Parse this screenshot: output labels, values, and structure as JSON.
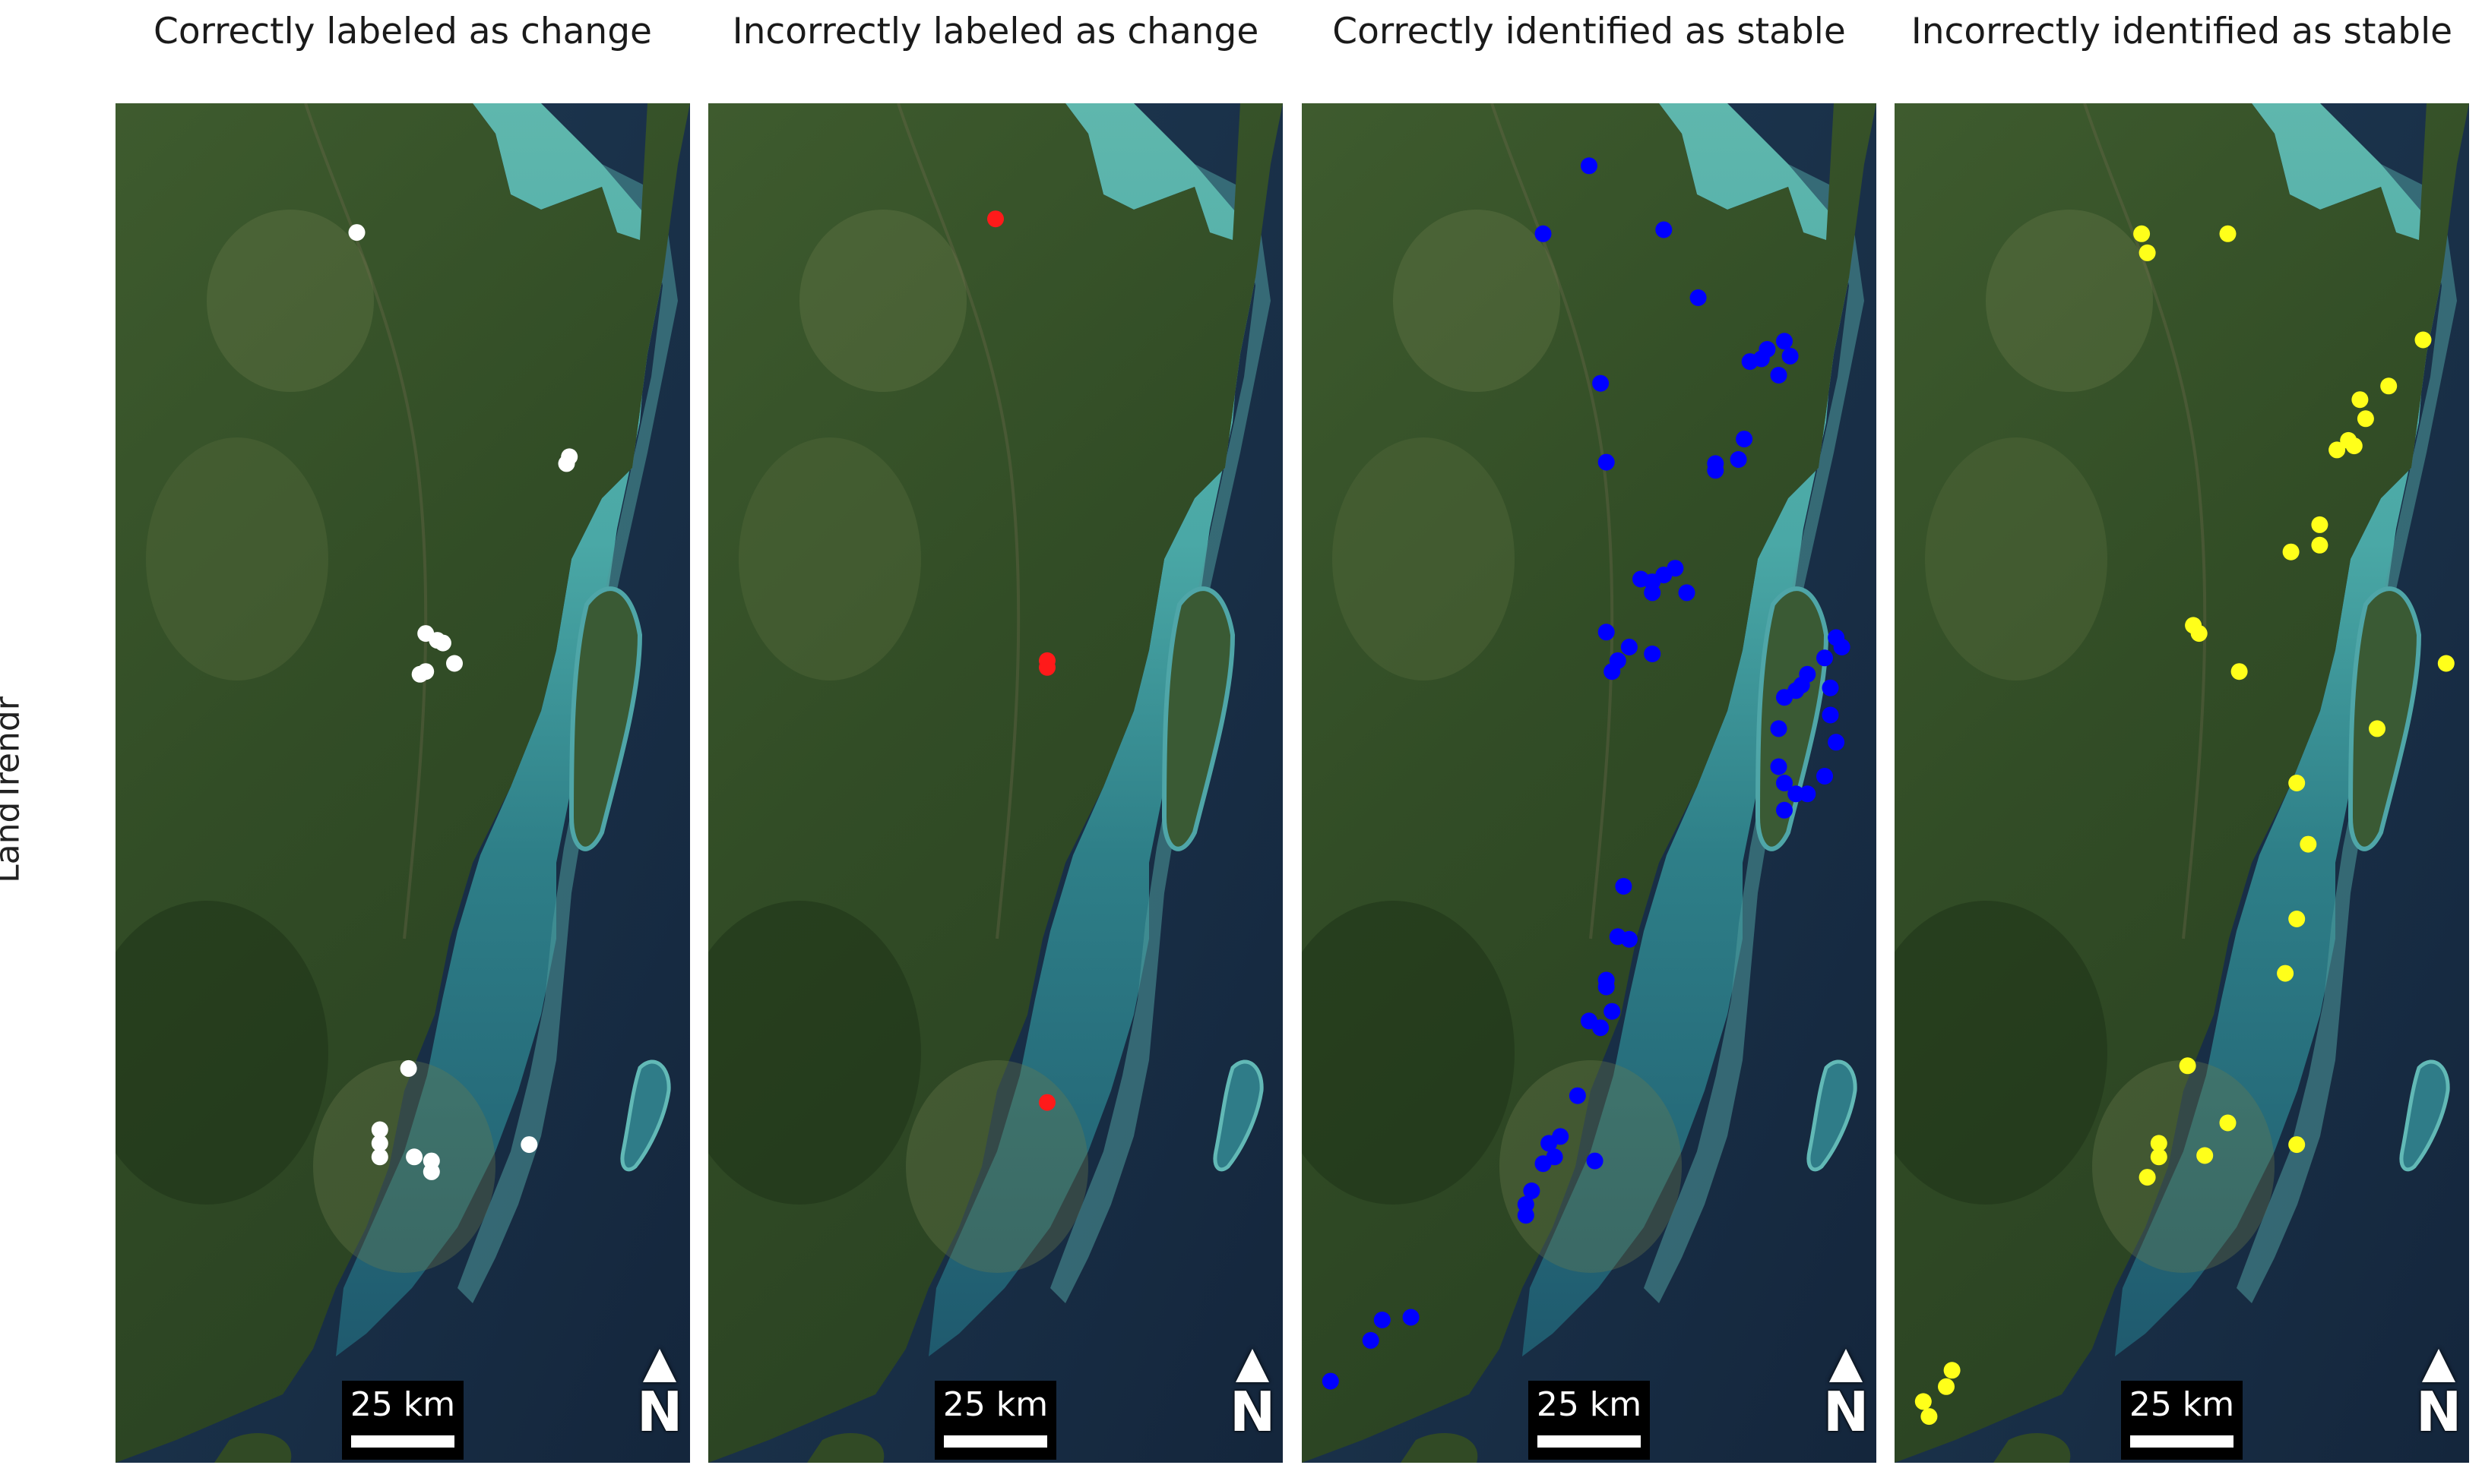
{
  "row_label": "LandTrendr",
  "scale_text": "25 km",
  "north_label": "N",
  "panels": [
    {
      "title": "Correctly labeled as change",
      "color": "#ffffff",
      "points": [
        [
          0.42,
          0.095
        ],
        [
          0.79,
          0.26
        ],
        [
          0.785,
          0.265
        ],
        [
          0.54,
          0.39
        ],
        [
          0.56,
          0.395
        ],
        [
          0.57,
          0.397
        ],
        [
          0.53,
          0.42
        ],
        [
          0.54,
          0.418
        ],
        [
          0.59,
          0.412
        ],
        [
          0.51,
          0.71
        ],
        [
          0.46,
          0.755
        ],
        [
          0.46,
          0.765
        ],
        [
          0.46,
          0.775
        ],
        [
          0.52,
          0.775
        ],
        [
          0.55,
          0.778
        ],
        [
          0.55,
          0.786
        ],
        [
          0.72,
          0.766
        ]
      ]
    },
    {
      "title": "Incorrectly labeled as change",
      "color": "#ff1a1a",
      "points": [
        [
          0.5,
          0.085
        ],
        [
          0.59,
          0.41
        ],
        [
          0.59,
          0.415
        ],
        [
          0.59,
          0.735
        ]
      ]
    },
    {
      "title": "Correctly identified as stable",
      "color": "#0000ff",
      "points": [
        [
          0.5,
          0.046
        ],
        [
          0.42,
          0.096
        ],
        [
          0.63,
          0.093
        ],
        [
          0.69,
          0.143
        ],
        [
          0.52,
          0.206
        ],
        [
          0.8,
          0.188
        ],
        [
          0.81,
          0.181
        ],
        [
          0.84,
          0.175
        ],
        [
          0.85,
          0.186
        ],
        [
          0.78,
          0.19
        ],
        [
          0.83,
          0.2
        ],
        [
          0.77,
          0.247
        ],
        [
          0.76,
          0.262
        ],
        [
          0.72,
          0.265
        ],
        [
          0.72,
          0.27
        ],
        [
          0.53,
          0.264
        ],
        [
          0.59,
          0.35
        ],
        [
          0.61,
          0.352
        ],
        [
          0.63,
          0.347
        ],
        [
          0.65,
          0.342
        ],
        [
          0.61,
          0.36
        ],
        [
          0.67,
          0.36
        ],
        [
          0.53,
          0.389
        ],
        [
          0.57,
          0.4
        ],
        [
          0.55,
          0.41
        ],
        [
          0.54,
          0.418
        ],
        [
          0.61,
          0.405
        ],
        [
          0.93,
          0.393
        ],
        [
          0.94,
          0.4
        ],
        [
          0.91,
          0.408
        ],
        [
          0.88,
          0.42
        ],
        [
          0.84,
          0.437
        ],
        [
          0.86,
          0.432
        ],
        [
          0.87,
          0.428
        ],
        [
          0.92,
          0.43
        ],
        [
          0.92,
          0.45
        ],
        [
          0.83,
          0.46
        ],
        [
          0.93,
          0.47
        ],
        [
          0.83,
          0.488
        ],
        [
          0.84,
          0.5
        ],
        [
          0.86,
          0.508
        ],
        [
          0.88,
          0.508
        ],
        [
          0.91,
          0.495
        ],
        [
          0.84,
          0.52
        ],
        [
          0.56,
          0.576
        ],
        [
          0.57,
          0.615
        ],
        [
          0.55,
          0.613
        ],
        [
          0.53,
          0.645
        ],
        [
          0.53,
          0.65
        ],
        [
          0.5,
          0.675
        ],
        [
          0.52,
          0.68
        ],
        [
          0.54,
          0.668
        ],
        [
          0.48,
          0.73
        ],
        [
          0.43,
          0.765
        ],
        [
          0.45,
          0.76
        ],
        [
          0.44,
          0.775
        ],
        [
          0.42,
          0.78
        ],
        [
          0.4,
          0.8
        ],
        [
          0.39,
          0.81
        ],
        [
          0.39,
          0.818
        ],
        [
          0.51,
          0.778
        ],
        [
          0.14,
          0.895
        ],
        [
          0.19,
          0.893
        ],
        [
          0.12,
          0.91
        ],
        [
          0.05,
          0.94
        ]
      ]
    },
    {
      "title": "Incorrectly identified as stable",
      "color": "#ffff1a",
      "points": [
        [
          0.43,
          0.096
        ],
        [
          0.44,
          0.11
        ],
        [
          0.58,
          0.096
        ],
        [
          0.92,
          0.174
        ],
        [
          0.86,
          0.208
        ],
        [
          0.81,
          0.218
        ],
        [
          0.82,
          0.232
        ],
        [
          0.79,
          0.248
        ],
        [
          0.8,
          0.252
        ],
        [
          0.77,
          0.255
        ],
        [
          0.74,
          0.31
        ],
        [
          0.74,
          0.325
        ],
        [
          0.69,
          0.33
        ],
        [
          0.52,
          0.384
        ],
        [
          0.53,
          0.39
        ],
        [
          0.6,
          0.418
        ],
        [
          0.96,
          0.412
        ],
        [
          0.84,
          0.46
        ],
        [
          0.7,
          0.5
        ],
        [
          0.72,
          0.545
        ],
        [
          0.7,
          0.6
        ],
        [
          0.68,
          0.64
        ],
        [
          0.51,
          0.708
        ],
        [
          0.58,
          0.75
        ],
        [
          0.46,
          0.765
        ],
        [
          0.46,
          0.775
        ],
        [
          0.44,
          0.79
        ],
        [
          0.54,
          0.774
        ],
        [
          0.7,
          0.766
        ],
        [
          0.1,
          0.932
        ],
        [
          0.09,
          0.944
        ],
        [
          0.05,
          0.955
        ],
        [
          0.06,
          0.966
        ]
      ]
    }
  ]
}
